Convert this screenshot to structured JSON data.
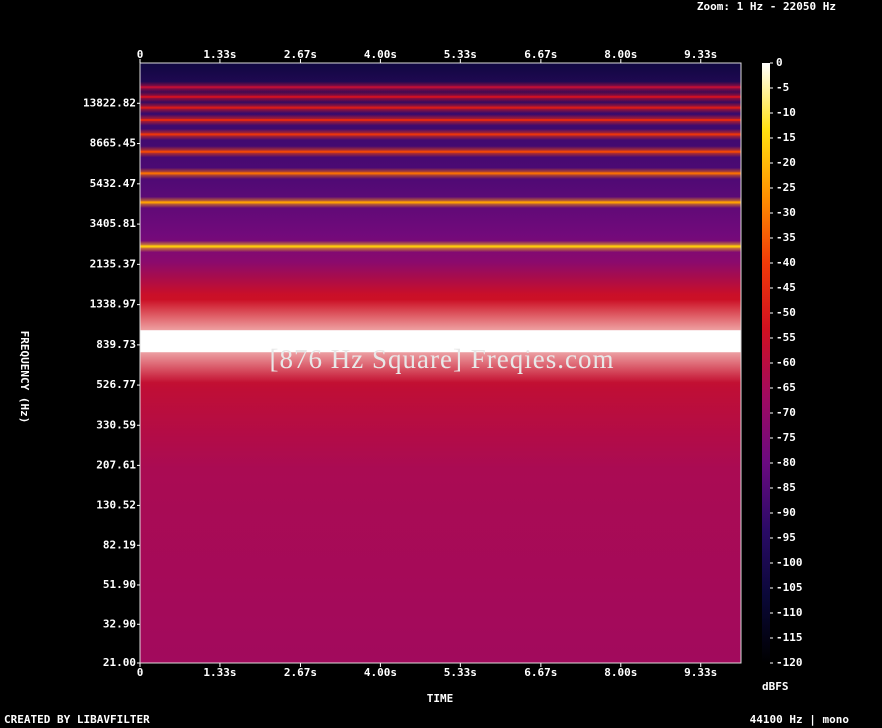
{
  "chart_data": {
    "type": "spectrogram",
    "zoom_label": "Zoom: 1 Hz - 22050 Hz",
    "ylabel": "FREQUENCY (Hz)",
    "xlabel": "TIME",
    "colorbar_label": "dBFS",
    "footer_left": "CREATED BY LIBAVFILTER",
    "footer_right": "44100 Hz | mono",
    "watermark": "[876 Hz Square] Freqies.com",
    "xlim": [
      0,
      10
    ],
    "xticks": [
      0,
      {
        "value": 1.33,
        "label": "1.33s"
      },
      {
        "value": 2.67,
        "label": "2.67s"
      },
      {
        "value": 4,
        "label": "4.00s"
      },
      {
        "value": 5.33,
        "label": "5.33s"
      },
      {
        "value": 6.67,
        "label": "6.67s"
      },
      {
        "value": 8,
        "label": "8.00s"
      },
      {
        "value": 9.33,
        "label": "9.33s"
      }
    ],
    "ylim": [
      21,
      22050
    ],
    "log_scale": true,
    "yticks": [
      {
        "value": 21,
        "label": "21.00"
      },
      {
        "value": 32.9,
        "label": "32.90"
      },
      {
        "value": 51.9,
        "label": "51.90"
      },
      {
        "value": 82.19,
        "label": "82.19"
      },
      {
        "value": 130.52,
        "label": "130.52"
      },
      {
        "value": 207.61,
        "label": "207.61"
      },
      {
        "value": 330.59,
        "label": "330.59"
      },
      {
        "value": 526.77,
        "label": "526.77"
      },
      {
        "value": 839.73,
        "label": "839.73"
      },
      {
        "value": 1338.97,
        "label": "1338.97"
      },
      {
        "value": 2135.37,
        "label": "2135.37"
      },
      {
        "value": 3405.81,
        "label": "3405.81"
      },
      {
        "value": 5432.47,
        "label": "5432.47"
      },
      {
        "value": 8665.45,
        "label": "8665.45"
      },
      {
        "value": 13822.82,
        "label": "13822.82"
      }
    ],
    "clim": [
      -120,
      0
    ],
    "cticks": [
      0,
      -5,
      -10,
      -15,
      -20,
      -25,
      -30,
      -35,
      -40,
      -45,
      -50,
      -55,
      -60,
      -65,
      -70,
      -75,
      -80,
      -85,
      -90,
      -95,
      -100,
      -105,
      -110,
      -115,
      -120
    ],
    "colormap": [
      "#000000",
      "#0a0838",
      "#2a0a66",
      "#6a0a80",
      "#a00a60",
      "#d01020",
      "#f03a08",
      "#ff9000",
      "#ffe010",
      "#ffffff"
    ],
    "floor": {
      "freqs": [
        21,
        200,
        500,
        900,
        1500,
        2200,
        3000,
        6000,
        12000,
        22050
      ],
      "dbfs": [
        -66,
        -64,
        -58,
        -50,
        -55,
        -72,
        -78,
        -86,
        -90,
        -104
      ]
    },
    "bands": [
      {
        "freq": 876,
        "dbfs": 0
      },
      {
        "freq": 2628,
        "dbfs": -17
      },
      {
        "freq": 4380,
        "dbfs": -24
      },
      {
        "freq": 6132,
        "dbfs": -32
      },
      {
        "freq": 7884,
        "dbfs": -38
      },
      {
        "freq": 9636,
        "dbfs": -42
      },
      {
        "freq": 11388,
        "dbfs": -46
      },
      {
        "freq": 13140,
        "dbfs": -50
      },
      {
        "freq": 14892,
        "dbfs": -54
      },
      {
        "freq": 16644,
        "dbfs": -58
      }
    ]
  }
}
